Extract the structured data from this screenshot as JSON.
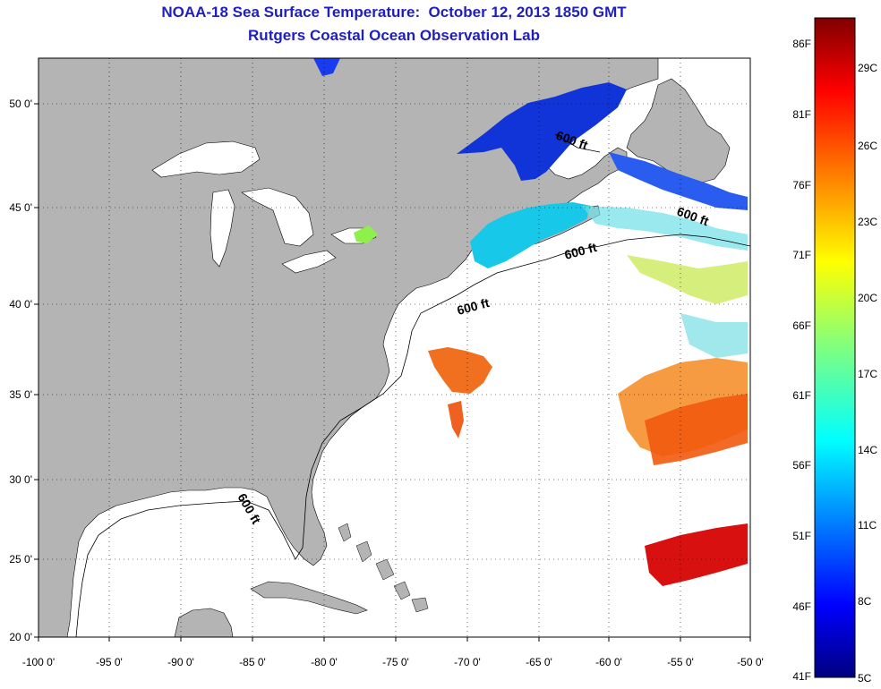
{
  "title": "NOAA-18 Sea Surface Temperature:  October 12, 2013 1850 GMT",
  "subtitle": "Rutgers Coastal Ocean Observation Lab",
  "map": {
    "lon_ticks": [
      "-100 0'",
      "-95 0'",
      "-90 0'",
      "-85 0'",
      "-80 0'",
      "-75 0'",
      "-70 0'",
      "-65 0'",
      "-60 0'",
      "-55 0'",
      "-50 0'"
    ],
    "lat_ticks": [
      "20 0'",
      "25 0'",
      "30 0'",
      "35 0'",
      "40 0'",
      "45 0'",
      "50 0'"
    ],
    "contour_label": "600 ft",
    "land_color": "#b4b4b4"
  },
  "colorbar": {
    "fahrenheit_labels": [
      "86F",
      "81F",
      "76F",
      "71F",
      "66F",
      "61F",
      "56F",
      "51F",
      "46F",
      "41F"
    ],
    "celsius_labels": [
      "29C",
      "26C",
      "23C",
      "20C",
      "17C",
      "14C",
      "11C",
      "8C",
      "5C"
    ],
    "colormap": "jet"
  }
}
